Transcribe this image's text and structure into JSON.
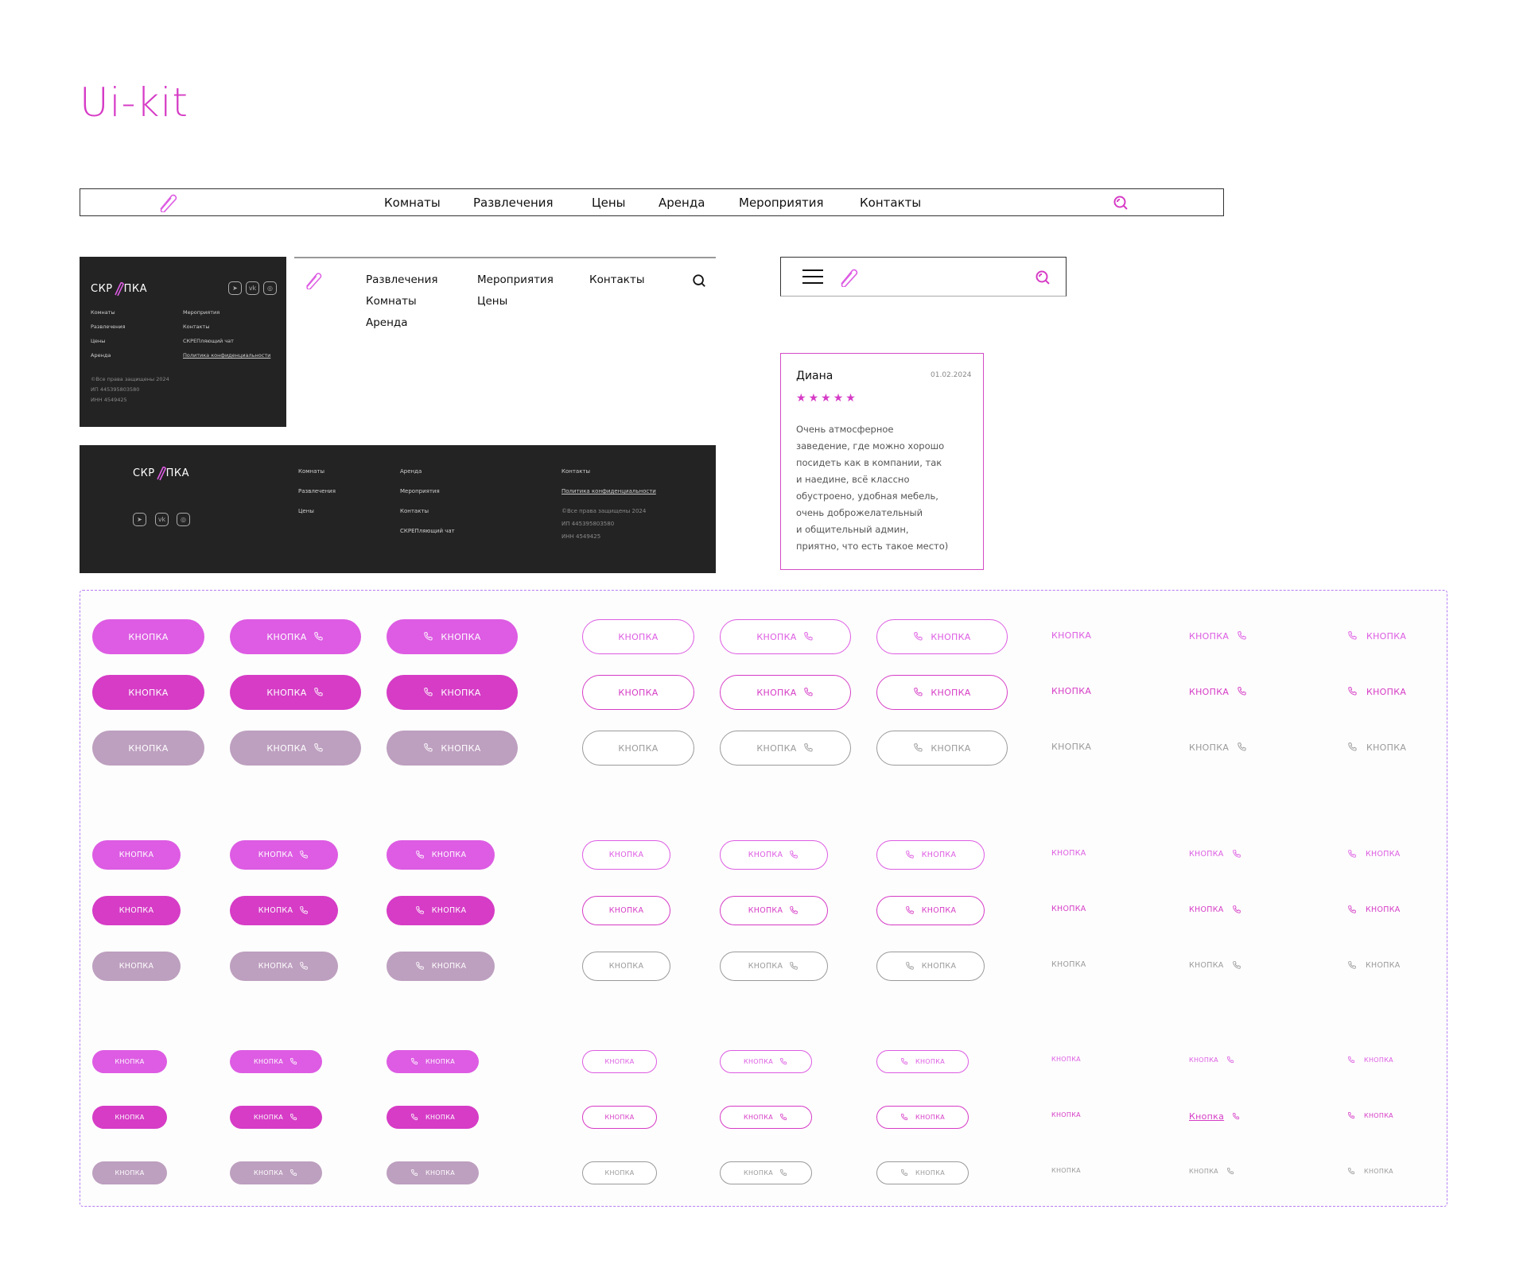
{
  "title": "Ui-kit",
  "colors": {
    "primary": "#dd5ce3",
    "active": "#d63cc6",
    "disabled": "#bd9fbf",
    "disabled_outline": "#9a9a9a",
    "dark_bg": "#232323"
  },
  "header": {
    "nav": [
      "Комнаты",
      "Развлечения",
      "Цены",
      "Аренда",
      "Мероприятия",
      "Контакты"
    ],
    "icons": [
      "paperclip-icon",
      "search-icon"
    ]
  },
  "tablet_header": {
    "nav": [
      "Развлечения",
      "Мероприятия",
      "Контакты",
      "Комнаты",
      "Цены",
      "Аренда"
    ]
  },
  "mobile_header": {
    "icons": [
      "menu-icon",
      "paperclip-icon",
      "search-icon"
    ]
  },
  "logo": {
    "left": "СКР",
    "right": "ПКА"
  },
  "footer": {
    "links": [
      "Комнаты",
      "Развлечения",
      "Цены",
      "Аренда",
      "Мероприятия",
      "Контакты",
      "СКРЕПляющий чат"
    ],
    "privacy": "Политика конфиденциальности",
    "copyright": "©Все права защищены 2024",
    "ip": "ИП 445395803580",
    "inn": "ИНН 4549425",
    "social": [
      "telegram-icon",
      "vk-icon",
      "instagram-icon"
    ]
  },
  "review": {
    "name": "Диана",
    "date": "01.02.2024",
    "rating": 5,
    "lines": [
      "Очень атмосферное",
      "заведение, где можно хорошо",
      "посидеть как в компании, так",
      "и наедине, всё классно",
      "обустроено, удобная мебель,",
      "очень доброжелательный",
      "и общительный админ,",
      "приятно, что есть такое место)"
    ]
  },
  "buttons": {
    "label": "КНОПКА",
    "link_label": "Кнопка",
    "sizes": [
      "large",
      "medium",
      "small"
    ],
    "states": [
      "default",
      "active",
      "disabled"
    ],
    "variants": [
      "filled",
      "filled-icon-right",
      "filled-icon-left",
      "outline",
      "outline-icon-right",
      "outline-icon-left",
      "text",
      "text-icon-right",
      "text-icon-left"
    ]
  }
}
